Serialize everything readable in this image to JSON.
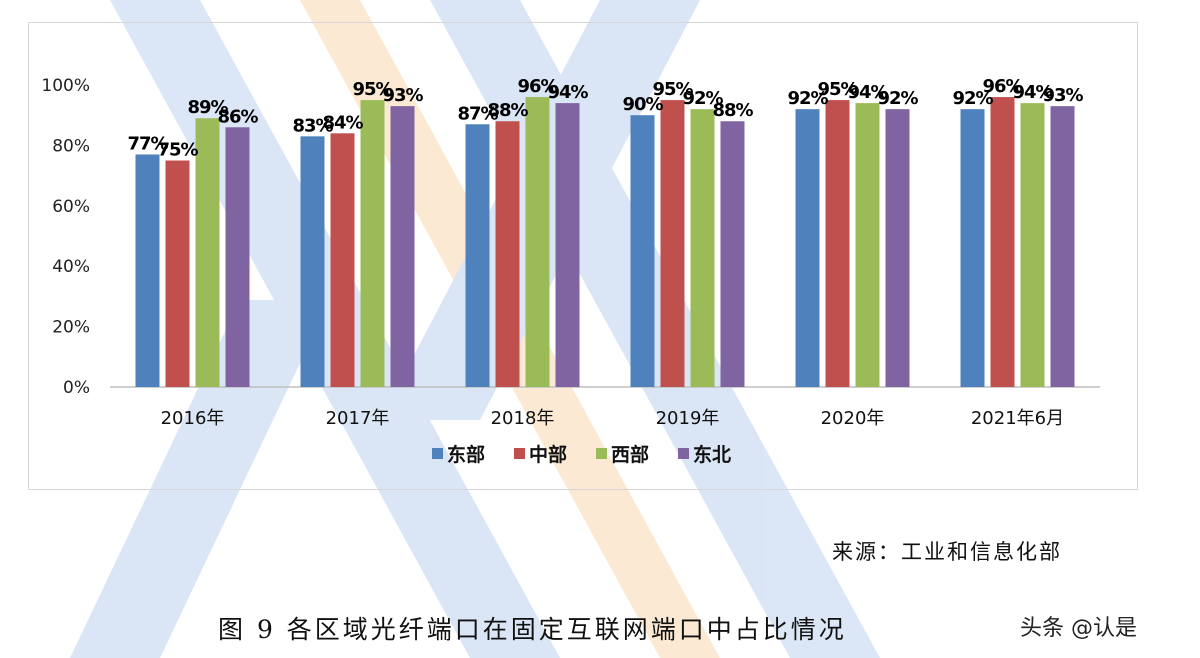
{
  "chart_data": {
    "type": "bar",
    "categories": [
      "2016年",
      "2017年",
      "2018年",
      "2019年",
      "2020年",
      "2021年6月"
    ],
    "series": [
      {
        "name": "东部",
        "color": "#4f81bd",
        "values": [
          77,
          83,
          87,
          90,
          92,
          92
        ]
      },
      {
        "name": "中部",
        "color": "#c0504d",
        "values": [
          75,
          84,
          88,
          95,
          95,
          96
        ]
      },
      {
        "name": "西部",
        "color": "#9bbb59",
        "values": [
          89,
          95,
          96,
          92,
          94,
          94
        ]
      },
      {
        "name": "东北",
        "color": "#8064a2",
        "values": [
          86,
          93,
          94,
          88,
          92,
          93
        ]
      }
    ],
    "data_labels": [
      [
        "77%",
        "83%",
        "87%",
        "90%",
        "92%",
        "92%"
      ],
      [
        "75%",
        "84%",
        "88%",
        "95%",
        "95%",
        "96%"
      ],
      [
        "89%",
        "95%",
        "96%",
        "92%",
        "94%",
        "94%"
      ],
      [
        "86%",
        "93%",
        "94%",
        "88%",
        "92%",
        "93%"
      ]
    ],
    "ylim": [
      0,
      100
    ],
    "yticks": [
      "0%",
      "20%",
      "40%",
      "60%",
      "80%",
      "100%"
    ],
    "legend": "bottom",
    "grid": false
  },
  "source_note": "来源：工业和信息化部",
  "caption": "图 9 各区域光纤端口在固定互联网端口中占比情况",
  "credit": "头条 @认是"
}
